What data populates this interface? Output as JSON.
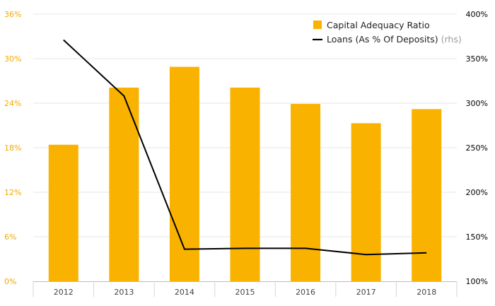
{
  "chart_data": {
    "type": "bar",
    "title": "",
    "categories": [
      "2012",
      "2013",
      "2014",
      "2015",
      "2016",
      "2017",
      "2018"
    ],
    "series": [
      {
        "name": "Capital Adequacy Ratio",
        "type": "bar",
        "axis": "left",
        "color": "#f9b200",
        "values": [
          18.4,
          26.1,
          28.9,
          26.1,
          23.9,
          21.3,
          23.2
        ]
      },
      {
        "name": "Loans (As % Of Deposits)",
        "name_note": "(rhs)",
        "type": "line",
        "axis": "right",
        "color": "#000000",
        "values": [
          371,
          308,
          136,
          137,
          137,
          130,
          132
        ]
      }
    ],
    "y_left": {
      "range": [
        0,
        36
      ],
      "ticks": [
        0,
        6,
        12,
        18,
        24,
        30,
        36
      ],
      "tick_labels": [
        "0%",
        "6%",
        "12%",
        "18%",
        "24%",
        "30%",
        "36%"
      ],
      "color": "#f2a900"
    },
    "y_right": {
      "range": [
        100,
        400
      ],
      "ticks": [
        100,
        150,
        200,
        250,
        300,
        350,
        400
      ],
      "tick_labels": [
        "100%",
        "150%",
        "200%",
        "250%",
        "300%",
        "350%",
        "400%"
      ],
      "color": "#000000"
    },
    "grid": true,
    "legend_position": "top-right"
  }
}
